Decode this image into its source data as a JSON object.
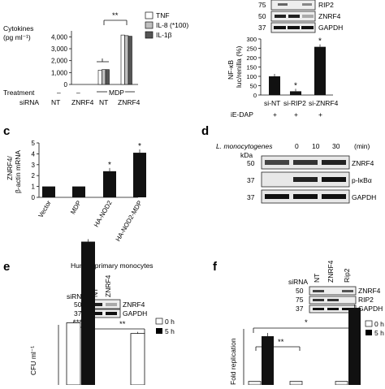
{
  "panel_a": {
    "ylabel_line1": "Cytokines",
    "ylabel_line2": "(pg ml⁻¹)",
    "yticks": [
      "0",
      "1,000",
      "2,000",
      "3,000",
      "4,000"
    ],
    "legend": [
      {
        "label": "TNF",
        "color": "#ffffff"
      },
      {
        "label": "IL-8 (*100)",
        "color": "#c0c0c0"
      },
      {
        "label": "IL-1β",
        "color": "#555555"
      }
    ],
    "significance": "**",
    "treatment_label": "Treatment",
    "treatment_values": [
      "–",
      "–",
      "MDP"
    ],
    "sirna_label": "siRNA",
    "sirna_values": [
      "NT",
      "ZNRF4",
      "NT",
      "ZNRF4"
    ]
  },
  "panel_b": {
    "blot_labels": [
      "RIP2",
      "ZNRF4",
      "GAPDH"
    ],
    "mw_markers": [
      "75",
      "50",
      "37"
    ],
    "ylabel_line1": "NF-κB",
    "ylabel_line2": "luc/renilla (%)",
    "yticks": [
      "0",
      "50",
      "100",
      "150",
      "200",
      "250",
      "300"
    ],
    "categories": [
      "si-NT",
      "si-RIP2",
      "si-ZNRF4"
    ],
    "stars": [
      "",
      "*",
      "*"
    ],
    "ie_dap_label": "iE-DAP",
    "ie_dap_values": [
      "+",
      "+",
      "+"
    ]
  },
  "panel_c": {
    "letter": "c",
    "ylabel_line1": "ZNRF4/",
    "ylabel_line2": "β-actin mRNA",
    "yticks": [
      "0",
      "1",
      "2",
      "3",
      "4",
      "5"
    ],
    "categories": [
      "Vector",
      "MDP",
      "HA-NOD2",
      "HA-NOD2-MDP"
    ],
    "stars": [
      "",
      "",
      "*",
      "*"
    ]
  },
  "panel_d": {
    "letter": "d",
    "header_label": "L. monocytogenes",
    "timepoints": [
      "0",
      "10",
      "30"
    ],
    "time_unit": "(min)",
    "kda_label": "kDa",
    "mw_markers": [
      "50",
      "37",
      "37"
    ],
    "blot_labels": [
      "ZNRF4",
      "p-IκBα",
      "GAPDH"
    ]
  },
  "panel_e": {
    "letter": "e",
    "title": "Human primary monocytes",
    "sirna_label": "siRNA",
    "lane_labels": [
      "NT",
      "ZNRF4"
    ],
    "mw_markers": [
      "50",
      "37"
    ],
    "blot_labels": [
      "ZNRF4",
      "GAPDH"
    ],
    "legend": [
      {
        "label": "0 h",
        "color": "#ffffff"
      },
      {
        "label": "5 h",
        "color": "#000000"
      }
    ],
    "significance": [
      "***",
      "**"
    ],
    "ylabel": "CFU ml⁻¹"
  },
  "panel_f": {
    "letter": "f",
    "sirna_label": "siRNA",
    "lane_labels": [
      "NT",
      "ZNRF4",
      "Rip2"
    ],
    "mw_markers": [
      "50",
      "75",
      "37"
    ],
    "blot_labels": [
      "ZNRF4",
      "RIP2",
      "GAPDH"
    ],
    "legend": [
      {
        "label": "0 h",
        "color": "#ffffff"
      },
      {
        "label": "5 h",
        "color": "#000000"
      }
    ],
    "significance": [
      "*",
      "**"
    ],
    "ylabel": "Fold replication"
  },
  "chart_data": [
    {
      "type": "bar",
      "categories": [
        "NT",
        "ZNRF4",
        "NT MDP",
        "ZNRF4 MDP"
      ],
      "series": [
        {
          "name": "TNF",
          "values": [
            0,
            0,
            1200,
            4150
          ]
        },
        {
          "name": "IL-8 (*100)",
          "values": [
            0,
            0,
            1250,
            4100
          ]
        },
        {
          "name": "IL-1β",
          "values": [
            0,
            0,
            1250,
            4050
          ]
        }
      ],
      "ylabel": "Cytokines (pg ml⁻¹)",
      "ylim": [
        0,
        4500
      ]
    },
    {
      "type": "bar",
      "categories": [
        "si-NT",
        "si-RIP2",
        "si-ZNRF4"
      ],
      "values": [
        100,
        20,
        258
      ],
      "ylabel": "NF-κB luc/renilla (%)",
      "ylim": [
        0,
        300
      ]
    },
    {
      "type": "bar",
      "categories": [
        "Vector",
        "MDP",
        "HA-NOD2",
        "HA-NOD2-MDP"
      ],
      "values": [
        1.0,
        1.0,
        2.4,
        4.1
      ],
      "ylabel": "ZNRF4/β-actin mRNA",
      "ylim": [
        0,
        5
      ]
    },
    {
      "type": "bar",
      "categories": [
        "NT",
        "ZNRF4"
      ],
      "series": [
        {
          "name": "0 h",
          "values": [
            77,
            72
          ]
        },
        {
          "name": "5 h",
          "values": [
            115,
            null
          ]
        }
      ],
      "ylabel": "CFU ml⁻¹"
    },
    {
      "type": "bar",
      "categories": [
        "NT",
        "ZNRF4",
        "Rip2"
      ],
      "series": [
        {
          "name": "0 h",
          "values": [
            0.1,
            0.1,
            0.1
          ]
        },
        {
          "name": "5 h",
          "values": [
            2.4,
            null,
            3.8
          ]
        }
      ],
      "ylabel": "Fold replication"
    }
  ]
}
